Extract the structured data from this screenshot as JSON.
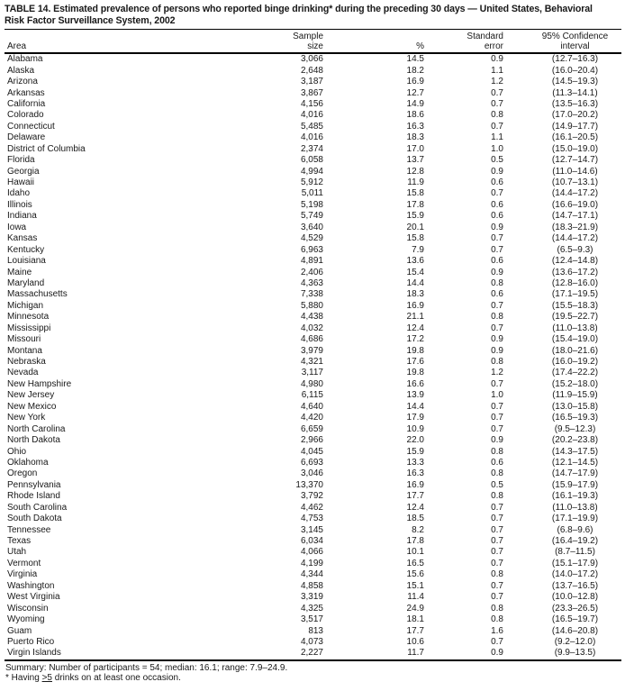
{
  "title": {
    "line1": "TABLE 14. Estimated prevalence of persons who reported binge drinking* during the preceding 30 days — United States, Behavioral",
    "line2": "Risk Factor Surveillance System, 2002"
  },
  "table": {
    "columns": {
      "area": "Area",
      "sample_line1": "Sample",
      "sample_line2": "size",
      "pct": "%",
      "se_line1": "Standard",
      "se_line2": "error",
      "ci_line1": "95% Confidence",
      "ci_line2": "interval"
    },
    "rows": [
      {
        "area": "Alabama",
        "sample": "3,066",
        "pct": "14.5",
        "se": "0.9",
        "ci": "(12.7–16.3)"
      },
      {
        "area": "Alaska",
        "sample": "2,648",
        "pct": "18.2",
        "se": "1.1",
        "ci": "(16.0–20.4)"
      },
      {
        "area": "Arizona",
        "sample": "3,187",
        "pct": "16.9",
        "se": "1.2",
        "ci": "(14.5–19.3)"
      },
      {
        "area": "Arkansas",
        "sample": "3,867",
        "pct": "12.7",
        "se": "0.7",
        "ci": "(11.3–14.1)"
      },
      {
        "area": "California",
        "sample": "4,156",
        "pct": "14.9",
        "se": "0.7",
        "ci": "(13.5–16.3)"
      },
      {
        "area": "Colorado",
        "sample": "4,016",
        "pct": "18.6",
        "se": "0.8",
        "ci": "(17.0–20.2)"
      },
      {
        "area": "Connecticut",
        "sample": "5,485",
        "pct": "16.3",
        "se": "0.7",
        "ci": "(14.9–17.7)"
      },
      {
        "area": "Delaware",
        "sample": "4,016",
        "pct": "18.3",
        "se": "1.1",
        "ci": "(16.1–20.5)"
      },
      {
        "area": "District of Columbia",
        "sample": "2,374",
        "pct": "17.0",
        "se": "1.0",
        "ci": "(15.0–19.0)"
      },
      {
        "area": "Florida",
        "sample": "6,058",
        "pct": "13.7",
        "se": "0.5",
        "ci": "(12.7–14.7)"
      },
      {
        "area": "Georgia",
        "sample": "4,994",
        "pct": "12.8",
        "se": "0.9",
        "ci": "(11.0–14.6)"
      },
      {
        "area": "Hawaii",
        "sample": "5,912",
        "pct": "11.9",
        "se": "0.6",
        "ci": "(10.7–13.1)"
      },
      {
        "area": "Idaho",
        "sample": "5,011",
        "pct": "15.8",
        "se": "0.7",
        "ci": "(14.4–17.2)"
      },
      {
        "area": "Illinois",
        "sample": "5,198",
        "pct": "17.8",
        "se": "0.6",
        "ci": "(16.6–19.0)"
      },
      {
        "area": "Indiana",
        "sample": "5,749",
        "pct": "15.9",
        "se": "0.6",
        "ci": "(14.7–17.1)"
      },
      {
        "area": "Iowa",
        "sample": "3,640",
        "pct": "20.1",
        "se": "0.9",
        "ci": "(18.3–21.9)"
      },
      {
        "area": "Kansas",
        "sample": "4,529",
        "pct": "15.8",
        "se": "0.7",
        "ci": "(14.4–17.2)"
      },
      {
        "area": "Kentucky",
        "sample": "6,963",
        "pct": "7.9",
        "se": "0.7",
        "ci": "(6.5–9.3)"
      },
      {
        "area": "Louisiana",
        "sample": "4,891",
        "pct": "13.6",
        "se": "0.6",
        "ci": "(12.4–14.8)"
      },
      {
        "area": "Maine",
        "sample": "2,406",
        "pct": "15.4",
        "se": "0.9",
        "ci": "(13.6–17.2)"
      },
      {
        "area": "Maryland",
        "sample": "4,363",
        "pct": "14.4",
        "se": "0.8",
        "ci": "(12.8–16.0)"
      },
      {
        "area": "Massachusetts",
        "sample": "7,338",
        "pct": "18.3",
        "se": "0.6",
        "ci": "(17.1–19.5)"
      },
      {
        "area": "Michigan",
        "sample": "5,880",
        "pct": "16.9",
        "se": "0.7",
        "ci": "(15.5–18.3)"
      },
      {
        "area": "Minnesota",
        "sample": "4,438",
        "pct": "21.1",
        "se": "0.8",
        "ci": "(19.5–22.7)"
      },
      {
        "area": "Mississippi",
        "sample": "4,032",
        "pct": "12.4",
        "se": "0.7",
        "ci": "(11.0–13.8)"
      },
      {
        "area": "Missouri",
        "sample": "4,686",
        "pct": "17.2",
        "se": "0.9",
        "ci": "(15.4–19.0)"
      },
      {
        "area": "Montana",
        "sample": "3,979",
        "pct": "19.8",
        "se": "0.9",
        "ci": "(18.0–21.6)"
      },
      {
        "area": "Nebraska",
        "sample": "4,321",
        "pct": "17.6",
        "se": "0.8",
        "ci": "(16.0–19.2)"
      },
      {
        "area": "Nevada",
        "sample": "3,117",
        "pct": "19.8",
        "se": "1.2",
        "ci": "(17.4–22.2)"
      },
      {
        "area": "New Hampshire",
        "sample": "4,980",
        "pct": "16.6",
        "se": "0.7",
        "ci": "(15.2–18.0)"
      },
      {
        "area": "New Jersey",
        "sample": "6,115",
        "pct": "13.9",
        "se": "1.0",
        "ci": "(11.9–15.9)"
      },
      {
        "area": "New Mexico",
        "sample": "4,640",
        "pct": "14.4",
        "se": "0.7",
        "ci": "(13.0–15.8)"
      },
      {
        "area": "New York",
        "sample": "4,420",
        "pct": "17.9",
        "se": "0.7",
        "ci": "(16.5–19.3)"
      },
      {
        "area": "North Carolina",
        "sample": "6,659",
        "pct": "10.9",
        "se": "0.7",
        "ci": "(9.5–12.3)"
      },
      {
        "area": "North Dakota",
        "sample": "2,966",
        "pct": "22.0",
        "se": "0.9",
        "ci": "(20.2–23.8)"
      },
      {
        "area": "Ohio",
        "sample": "4,045",
        "pct": "15.9",
        "se": "0.8",
        "ci": "(14.3–17.5)"
      },
      {
        "area": "Oklahoma",
        "sample": "6,693",
        "pct": "13.3",
        "se": "0.6",
        "ci": "(12.1–14.5)"
      },
      {
        "area": "Oregon",
        "sample": "3,046",
        "pct": "16.3",
        "se": "0.8",
        "ci": "(14.7–17.9)"
      },
      {
        "area": "Pennsylvania",
        "sample": "13,370",
        "pct": "16.9",
        "se": "0.5",
        "ci": "(15.9–17.9)"
      },
      {
        "area": "Rhode Island",
        "sample": "3,792",
        "pct": "17.7",
        "se": "0.8",
        "ci": "(16.1–19.3)"
      },
      {
        "area": "South Carolina",
        "sample": "4,462",
        "pct": "12.4",
        "se": "0.7",
        "ci": "(11.0–13.8)"
      },
      {
        "area": "South Dakota",
        "sample": "4,753",
        "pct": "18.5",
        "se": "0.7",
        "ci": "(17.1–19.9)"
      },
      {
        "area": "Tennessee",
        "sample": "3,145",
        "pct": "8.2",
        "se": "0.7",
        "ci": "(6.8–9.6)"
      },
      {
        "area": "Texas",
        "sample": "6,034",
        "pct": "17.8",
        "se": "0.7",
        "ci": "(16.4–19.2)"
      },
      {
        "area": "Utah",
        "sample": "4,066",
        "pct": "10.1",
        "se": "0.7",
        "ci": "(8.7–11.5)"
      },
      {
        "area": "Vermont",
        "sample": "4,199",
        "pct": "16.5",
        "se": "0.7",
        "ci": "(15.1–17.9)"
      },
      {
        "area": "Virginia",
        "sample": "4,344",
        "pct": "15.6",
        "se": "0.8",
        "ci": "(14.0–17.2)"
      },
      {
        "area": "Washington",
        "sample": "4,858",
        "pct": "15.1",
        "se": "0.7",
        "ci": "(13.7–16.5)"
      },
      {
        "area": "West Virginia",
        "sample": "3,319",
        "pct": "11.4",
        "se": "0.7",
        "ci": "(10.0–12.8)"
      },
      {
        "area": "Wisconsin",
        "sample": "4,325",
        "pct": "24.9",
        "se": "0.8",
        "ci": "(23.3–26.5)"
      },
      {
        "area": "Wyoming",
        "sample": "3,517",
        "pct": "18.1",
        "se": "0.8",
        "ci": "(16.5–19.7)"
      },
      {
        "area": "Guam",
        "sample": "813",
        "pct": "17.7",
        "se": "1.6",
        "ci": "(14.6–20.8)"
      },
      {
        "area": "Puerto Rico",
        "sample": "4,073",
        "pct": "10.6",
        "se": "0.7",
        "ci": "(9.2–12.0)"
      },
      {
        "area": "Virgin Islands",
        "sample": "2,227",
        "pct": "11.7",
        "se": "0.9",
        "ci": "(9.9–13.5)"
      }
    ]
  },
  "summary": "Summary: Number of participants = 54; median: 16.1; range: 7.9–24.9.",
  "footnote": {
    "prefix": "* Having ",
    "underlined": ">5",
    "suffix": " drinks on at least one occasion."
  }
}
